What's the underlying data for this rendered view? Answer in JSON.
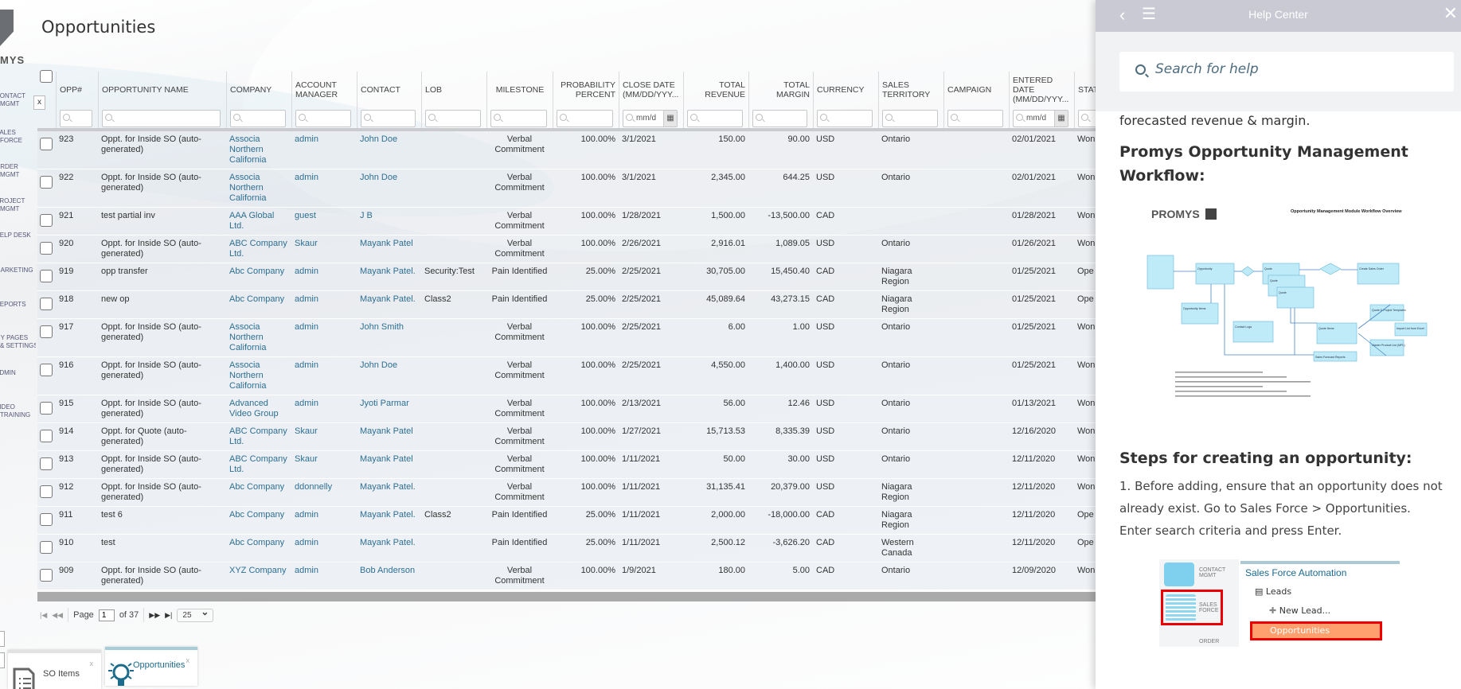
{
  "app": {
    "logo_text": "MYS",
    "page_title": "Opportunities"
  },
  "sidebar": {
    "items": [
      {
        "label": "CONTACT\nMGMT"
      },
      {
        "label": "SALES\nFORCE"
      },
      {
        "label": "ORDER\nMGMT"
      },
      {
        "label": "PROJECT\nMGMT"
      },
      {
        "label": "HELP DESK"
      },
      {
        "label": "MARKETING"
      },
      {
        "label": "REPORTS"
      },
      {
        "label": "MY PAGES\n& SETTINGS"
      },
      {
        "label": "ADMIN"
      },
      {
        "label": "VIDEO\nTRAINING"
      }
    ]
  },
  "grid": {
    "columns": [
      {
        "key": "opp",
        "label": "OPP#",
        "align": "left"
      },
      {
        "key": "name",
        "label": "OPPORTUNITY NAME",
        "align": "left"
      },
      {
        "key": "company",
        "label": "COMPANY",
        "align": "left",
        "link": true
      },
      {
        "key": "manager",
        "label": "ACCOUNT MANAGER",
        "align": "left",
        "link": true
      },
      {
        "key": "contact",
        "label": "CONTACT",
        "align": "left",
        "link": true
      },
      {
        "key": "lob",
        "label": "LOB",
        "align": "left"
      },
      {
        "key": "milestone",
        "label": "MILESTONE",
        "align": "center"
      },
      {
        "key": "prob",
        "label": "PROBABILITY PERCENT",
        "align": "right"
      },
      {
        "key": "close",
        "label": "CLOSE DATE (MM/DD/YYY...",
        "align": "left",
        "date": true
      },
      {
        "key": "revenue",
        "label": "TOTAL REVENUE",
        "align": "right"
      },
      {
        "key": "margin",
        "label": "TOTAL MARGIN",
        "align": "right"
      },
      {
        "key": "currency",
        "label": "CURRENCY",
        "align": "left"
      },
      {
        "key": "territory",
        "label": "SALES TERRITORY",
        "align": "left"
      },
      {
        "key": "campaign",
        "label": "CAMPAIGN",
        "align": "left"
      },
      {
        "key": "entered",
        "label": "ENTERED DATE (MM/DD/YYY...",
        "align": "left",
        "date": true
      },
      {
        "key": "status",
        "label": "STATUS",
        "align": "left"
      }
    ],
    "clear_filter_label": "x",
    "date_filter_placeholder": "mm/d",
    "rows": [
      {
        "opp": "923",
        "name": "Oppt. for Inside SO (auto-generated)",
        "company": "Associa Northern California",
        "manager": "admin",
        "contact": "John Doe",
        "lob": "",
        "milestone": "Verbal Commitment",
        "prob": "100.00%",
        "close": "3/1/2021",
        "revenue": "150.00",
        "margin": "90.00",
        "currency": "USD",
        "territory": "Ontario",
        "campaign": "",
        "entered": "02/01/2021",
        "status": "Won"
      },
      {
        "opp": "922",
        "name": "Oppt. for Inside SO (auto-generated)",
        "company": "Associa Northern California",
        "manager": "admin",
        "contact": "John Doe",
        "lob": "",
        "milestone": "Verbal Commitment",
        "prob": "100.00%",
        "close": "3/1/2021",
        "revenue": "2,345.00",
        "margin": "644.25",
        "currency": "USD",
        "territory": "Ontario",
        "campaign": "",
        "entered": "02/01/2021",
        "status": "Won"
      },
      {
        "opp": "921",
        "name": "test partial inv",
        "company": "AAA Global Ltd.",
        "manager": "guest",
        "contact": "J B",
        "lob": "",
        "milestone": "Verbal Commitment",
        "prob": "100.00%",
        "close": "1/28/2021",
        "revenue": "1,500.00",
        "margin": "-13,500.00",
        "currency": "CAD",
        "territory": "",
        "campaign": "",
        "entered": "01/28/2021",
        "status": "Won"
      },
      {
        "opp": "920",
        "name": "Oppt. for Inside SO (auto-generated)",
        "company": "ABC Company Ltd.",
        "manager": "Skaur",
        "contact": "Mayank Patel",
        "lob": "",
        "milestone": "Verbal Commitment",
        "prob": "100.00%",
        "close": "2/26/2021",
        "revenue": "2,916.01",
        "margin": "1,089.05",
        "currency": "USD",
        "territory": "Ontario",
        "campaign": "",
        "entered": "01/26/2021",
        "status": "Won"
      },
      {
        "opp": "919",
        "name": "opp transfer",
        "company": "Abc Company",
        "manager": "admin",
        "contact": "Mayank Patel.",
        "lob": "Security:Test",
        "milestone": "Pain Identified",
        "prob": "25.00%",
        "close": "2/25/2021",
        "revenue": "30,705.00",
        "margin": "15,450.40",
        "currency": "CAD",
        "territory": "Niagara Region",
        "campaign": "",
        "entered": "01/25/2021",
        "status": "Ope"
      },
      {
        "opp": "918",
        "name": "new op",
        "company": "Abc Company",
        "manager": "admin",
        "contact": "Mayank Patel.",
        "lob": "Class2",
        "milestone": "Pain Identified",
        "prob": "25.00%",
        "close": "2/25/2021",
        "revenue": "45,089.64",
        "margin": "43,273.15",
        "currency": "CAD",
        "territory": "Niagara Region",
        "campaign": "",
        "entered": "01/25/2021",
        "status": "Ope"
      },
      {
        "opp": "917",
        "name": "Oppt. for Inside SO (auto-generated)",
        "company": "Associa Northern California",
        "manager": "admin",
        "contact": "John Smith",
        "lob": "",
        "milestone": "Verbal Commitment",
        "prob": "100.00%",
        "close": "2/25/2021",
        "revenue": "6.00",
        "margin": "1.00",
        "currency": "USD",
        "territory": "Ontario",
        "campaign": "",
        "entered": "01/25/2021",
        "status": "Won"
      },
      {
        "opp": "916",
        "name": "Oppt. for Inside SO (auto-generated)",
        "company": "Associa Northern California",
        "manager": "admin",
        "contact": "John Doe",
        "lob": "",
        "milestone": "Verbal Commitment",
        "prob": "100.00%",
        "close": "2/25/2021",
        "revenue": "4,550.00",
        "margin": "1,400.00",
        "currency": "USD",
        "territory": "Ontario",
        "campaign": "",
        "entered": "01/25/2021",
        "status": "Won"
      },
      {
        "opp": "915",
        "name": "Oppt. for Inside SO (auto-generated)",
        "company": "Advanced Video Group",
        "manager": "admin",
        "contact": "Jyoti Parmar",
        "lob": "",
        "milestone": "Verbal Commitment",
        "prob": "100.00%",
        "close": "2/13/2021",
        "revenue": "56.00",
        "margin": "12.46",
        "currency": "USD",
        "territory": "Ontario",
        "campaign": "",
        "entered": "01/13/2021",
        "status": "Won"
      },
      {
        "opp": "914",
        "name": "Oppt. for Quote (auto-generated)",
        "company": "ABC Company Ltd.",
        "manager": "Skaur",
        "contact": "Mayank Patel",
        "lob": "",
        "milestone": "Verbal Commitment",
        "prob": "100.00%",
        "close": "1/27/2021",
        "revenue": "15,713.53",
        "margin": "8,335.39",
        "currency": "USD",
        "territory": "Ontario",
        "campaign": "",
        "entered": "12/16/2020",
        "status": "Won"
      },
      {
        "opp": "913",
        "name": "Oppt. for Inside SO (auto-generated)",
        "company": "ABC Company Ltd.",
        "manager": "Skaur",
        "contact": "Mayank Patel",
        "lob": "",
        "milestone": "Verbal Commitment",
        "prob": "100.00%",
        "close": "1/11/2021",
        "revenue": "50.00",
        "margin": "30.00",
        "currency": "USD",
        "territory": "Ontario",
        "campaign": "",
        "entered": "12/11/2020",
        "status": "Won"
      },
      {
        "opp": "912",
        "name": "Oppt. for Inside SO (auto-generated)",
        "company": "Abc Company",
        "manager": "ddonnelly",
        "contact": "Mayank Patel.",
        "lob": "",
        "milestone": "Verbal Commitment",
        "prob": "100.00%",
        "close": "1/11/2021",
        "revenue": "31,135.41",
        "margin": "20,379.00",
        "currency": "USD",
        "territory": "Niagara Region",
        "campaign": "",
        "entered": "12/11/2020",
        "status": "Won"
      },
      {
        "opp": "911",
        "name": "test 6",
        "company": "Abc Company",
        "manager": "admin",
        "contact": "Mayank Patel.",
        "lob": "Class2",
        "milestone": "Pain Identified",
        "prob": "25.00%",
        "close": "1/11/2021",
        "revenue": "2,000.00",
        "margin": "-18,000.00",
        "currency": "CAD",
        "territory": "Niagara Region",
        "campaign": "",
        "entered": "12/11/2020",
        "status": "Ope"
      },
      {
        "opp": "910",
        "name": "test",
        "company": "Abc Company",
        "manager": "admin",
        "contact": "Mayank Patel.",
        "lob": "",
        "milestone": "Pain Identified",
        "prob": "25.00%",
        "close": "1/11/2021",
        "revenue": "2,500.12",
        "margin": "-3,626.20",
        "currency": "CAD",
        "territory": "Western Canada",
        "campaign": "",
        "entered": "12/11/2020",
        "status": "Ope"
      },
      {
        "opp": "909",
        "name": "Oppt. for Inside SO (auto-generated)",
        "company": "XYZ Company",
        "manager": "admin",
        "contact": "Bob Anderson",
        "lob": "",
        "milestone": "Verbal Commitment",
        "prob": "100.00%",
        "close": "1/9/2021",
        "revenue": "180.00",
        "margin": "5.00",
        "currency": "CAD",
        "territory": "Ontario",
        "campaign": "",
        "entered": "12/09/2020",
        "status": "Won"
      }
    ]
  },
  "pager": {
    "page_label": "Page",
    "page": "1",
    "of_label": "of 37",
    "page_size": "25"
  },
  "bottom_tabs": [
    {
      "label": "SO Items",
      "close": "x",
      "icon": "document-list-icon"
    },
    {
      "label": "Opportunities",
      "close": "x",
      "icon": "lightbulb-icon",
      "active": true
    }
  ],
  "help": {
    "title": "Help Center",
    "search_placeholder": "Search for help",
    "cut_text": "forecasted revenue & margin.",
    "heading1": "Promys Opportunity Management Workflow:",
    "diagram": {
      "logo": "PROMYS",
      "title": "Opportunity Management Module Workflow Overview",
      "boxes": [
        "Opportunity",
        "Quote",
        "Quote",
        "Quote",
        "Create Sales Order",
        "Contact Logs",
        "Quote Items",
        "Opportunity Items",
        "Quote & Project Templates",
        "Import List from Excel",
        "Master Product List (MPL)",
        "Sales Forecast Reports"
      ]
    },
    "heading2": "Steps for creating an opportunity:",
    "step1": "1. Before adding, ensure that an opportunity does not already exist. Go to Sales Force > Opportunities. Enter search criteria and press Enter.",
    "shot": {
      "contact": "CONTACT MGMT",
      "sales": "SALES FORCE",
      "order": "ORDER",
      "heading": "Sales Force Automation",
      "leads": "Leads",
      "new_lead": "New Lead...",
      "opportunities": "Opportunities"
    }
  },
  "colors": {
    "link": "#2d6f93",
    "help_bar": "#c9cad4",
    "highlight": "#ff0000",
    "opp_highlight": "#ffa06e"
  }
}
